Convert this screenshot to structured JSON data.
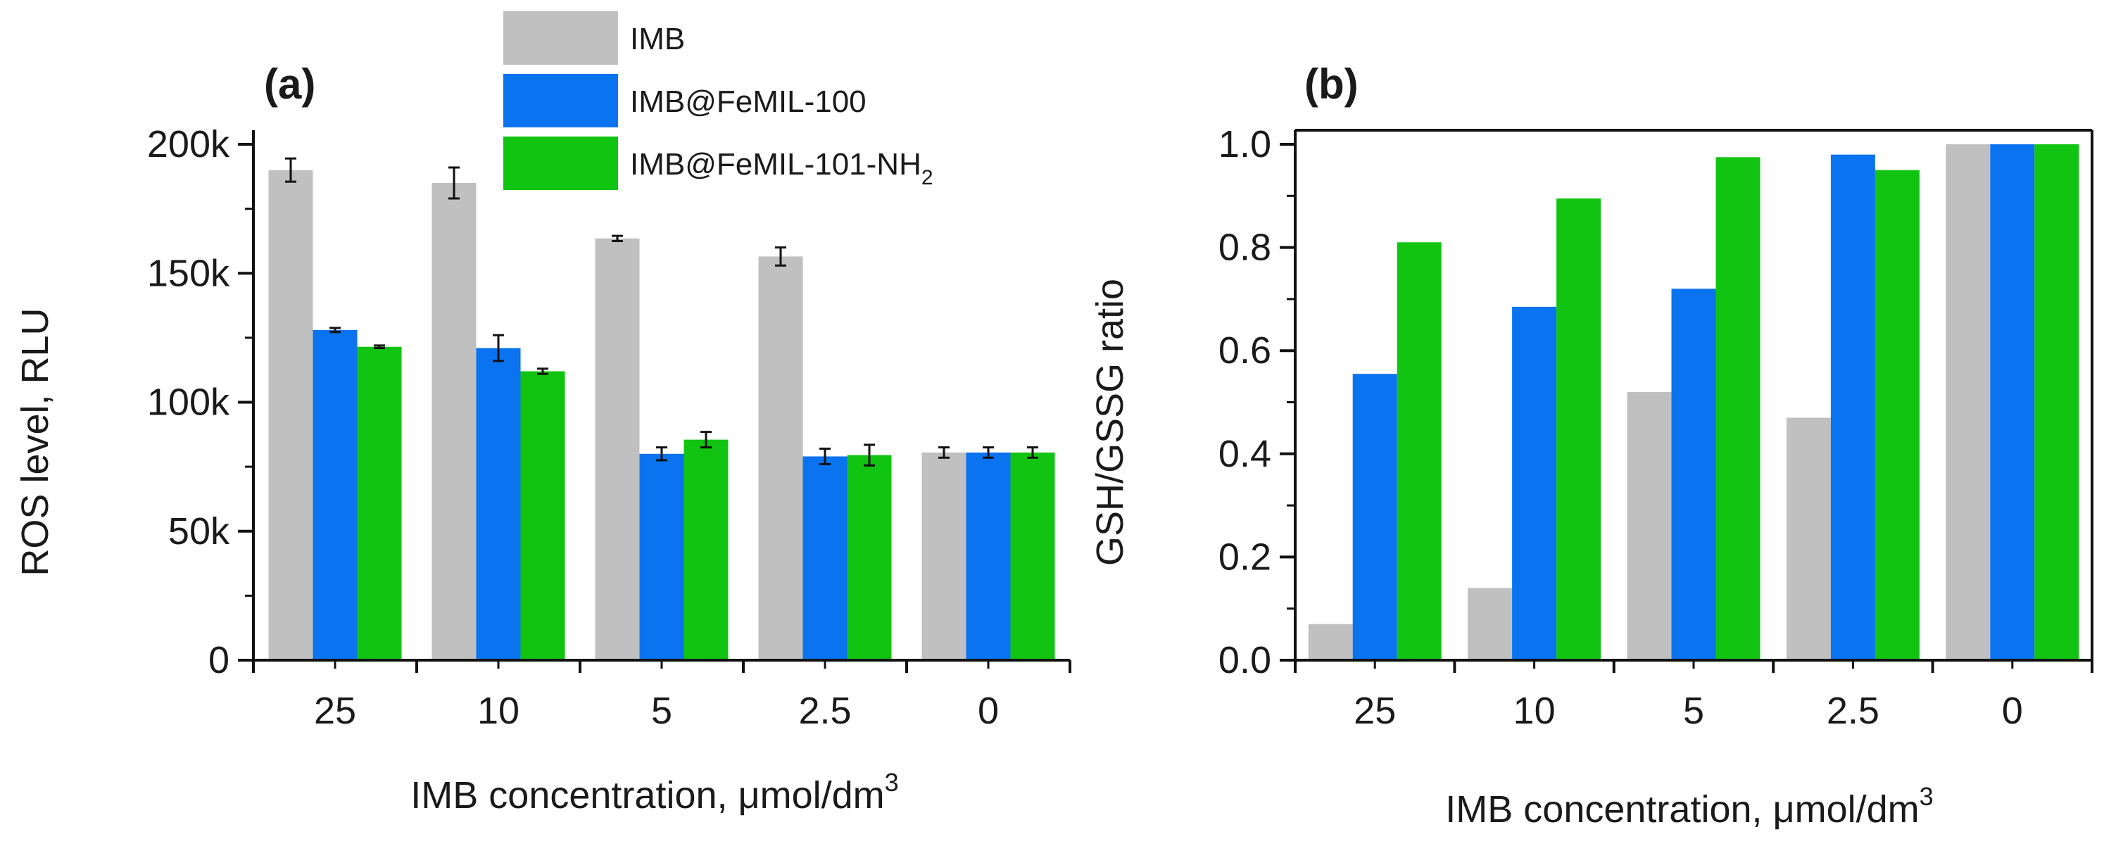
{
  "chart_data": [
    {
      "panel": "(a)",
      "type": "bar",
      "categories": [
        "25",
        "10",
        "5",
        "2.5",
        "0"
      ],
      "series": [
        {
          "name": "IMB",
          "color": "#c0c0c0",
          "values": [
            190000,
            185000,
            163500,
            156500,
            80500
          ],
          "errors": [
            4500,
            6000,
            1000,
            3500,
            2000
          ]
        },
        {
          "name": "IMB@FeMIL-100",
          "color": "#0a73f0",
          "values": [
            128000,
            121000,
            80000,
            79000,
            80500
          ],
          "errors": [
            800,
            5000,
            2500,
            3000,
            2000
          ]
        },
        {
          "name": "IMB@FeMIL-101-NH",
          "name_subscript": "2",
          "color": "#11c411",
          "values": [
            121500,
            112000,
            85500,
            79500,
            80500
          ],
          "errors": [
            500,
            1000,
            3000,
            4000,
            2000
          ]
        }
      ],
      "xlabel": "IMB concentration, μmol/dm",
      "xlabel_superscript": "3",
      "ylabel": "ROS level, RLU",
      "ylim": [
        0,
        200000
      ],
      "yticks": [
        0,
        50000,
        100000,
        150000,
        200000
      ],
      "ytick_labels": [
        "0",
        "50k",
        "100k",
        "150k",
        "200k"
      ],
      "legend_position": "top",
      "grid": false
    },
    {
      "panel": "(b)",
      "type": "bar",
      "categories": [
        "25",
        "10",
        "5",
        "2.5",
        "0"
      ],
      "series": [
        {
          "name": "IMB",
          "color": "#c0c0c0",
          "values": [
            0.07,
            0.14,
            0.52,
            0.47,
            1.0
          ]
        },
        {
          "name": "IMB@FeMIL-100",
          "color": "#0a73f0",
          "values": [
            0.555,
            0.685,
            0.72,
            0.98,
            1.0
          ]
        },
        {
          "name": "IMB@FeMIL-101-NH2",
          "color": "#11c411",
          "values": [
            0.81,
            0.895,
            0.975,
            0.95,
            1.0
          ]
        }
      ],
      "xlabel": "IMB concentration, μmol/dm",
      "xlabel_superscript": "3",
      "ylabel": "GSH/GSSG ratio",
      "ylim": [
        0,
        1.0
      ],
      "yticks": [
        0,
        0.2,
        0.4,
        0.6,
        0.8,
        1.0
      ],
      "ytick_labels": [
        "0.0",
        "0.2",
        "0.4",
        "0.6",
        "0.8",
        "1.0"
      ],
      "grid": false
    }
  ]
}
